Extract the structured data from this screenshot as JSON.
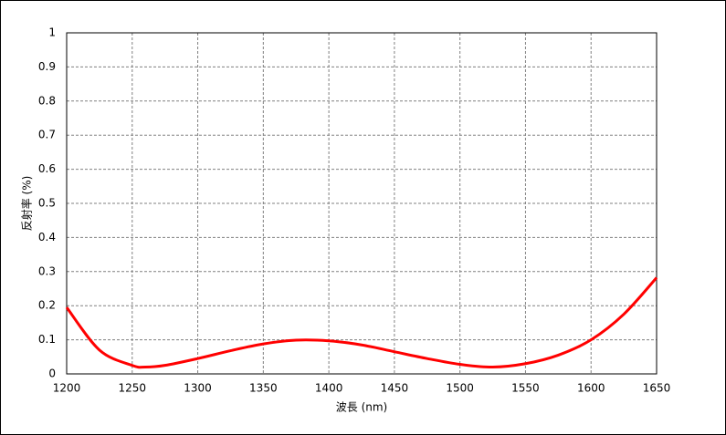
{
  "chart_data": {
    "type": "line",
    "x_label": "波長 (nm)",
    "y_label": "反射率 (%)",
    "x": [
      1200,
      1225,
      1250,
      1260,
      1275,
      1300,
      1325,
      1350,
      1375,
      1400,
      1425,
      1450,
      1475,
      1500,
      1525,
      1550,
      1575,
      1600,
      1625,
      1650
    ],
    "series": [
      {
        "color": "#ff0000",
        "values": [
          0.195,
          0.07,
          0.025,
          0.02,
          0.025,
          0.045,
          0.068,
          0.088,
          0.099,
          0.097,
          0.085,
          0.065,
          0.045,
          0.028,
          0.02,
          0.03,
          0.055,
          0.1,
          0.175,
          0.282
        ]
      }
    ],
    "xlim": [
      1200,
      1650
    ],
    "xticks": [
      1200,
      1250,
      1300,
      1350,
      1400,
      1450,
      1500,
      1550,
      1600,
      1650
    ],
    "ylim": [
      0,
      1
    ],
    "yticks": [
      0,
      0.1,
      0.2,
      0.3,
      0.4,
      0.5,
      0.6,
      0.7,
      0.8,
      0.9,
      1
    ],
    "grid": true
  }
}
